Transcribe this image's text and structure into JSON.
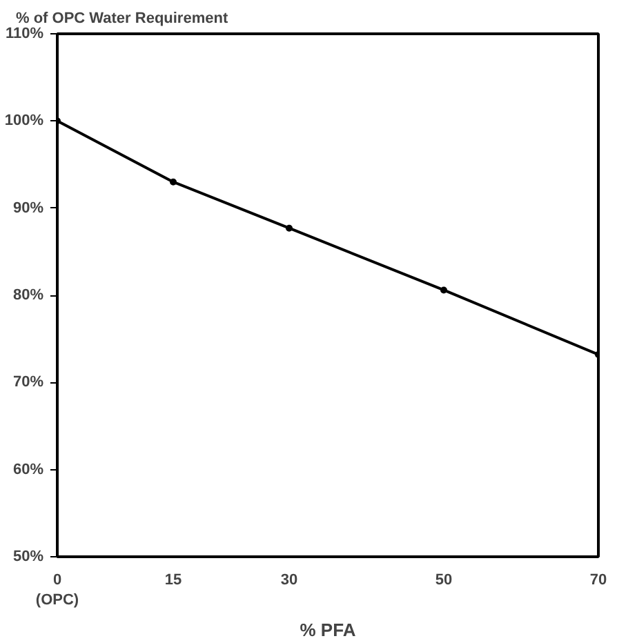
{
  "chart_data": {
    "type": "line",
    "title": "% of OPC Water Requirement",
    "xlabel": "% PFA",
    "x": [
      0,
      15,
      30,
      50,
      70
    ],
    "series": [
      {
        "color": "#000000",
        "values": [
          100,
          93.0,
          87.7,
          80.6,
          73.2
        ]
      }
    ],
    "xlim": [
      0,
      70
    ],
    "xticks": [
      {
        "value": 0,
        "label": "0\n(OPC)"
      },
      15,
      30,
      50,
      70
    ],
    "ylim": [
      50,
      110
    ],
    "yticks": [
      {
        "value": 50,
        "label": "50%"
      },
      {
        "value": 60,
        "label": "60%"
      },
      {
        "value": 70,
        "label": "70%"
      },
      {
        "value": 80,
        "label": "80%"
      },
      {
        "value": 90,
        "label": "90%"
      },
      {
        "value": 100,
        "label": "100%"
      },
      {
        "value": 110,
        "label": "110%"
      }
    ],
    "grid": false,
    "marker": "circle",
    "line_style": "solid"
  }
}
